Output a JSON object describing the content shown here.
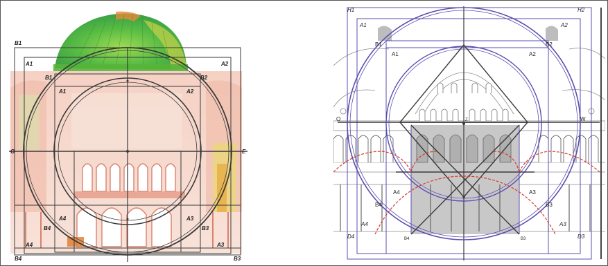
{
  "left_panel": {
    "labels": {
      "b1_top": "B1",
      "a1": "A1",
      "a2": "A2",
      "b1_inner": "B1",
      "b2_inner": "B2",
      "a1_inner": "A1",
      "a2_inner": "A2",
      "o": "O",
      "e": "E",
      "a4": "A4",
      "a3": "A3",
      "b4": "B4",
      "b3": "B3",
      "a4_bottom": "A4",
      "a3_bottom": "A3",
      "b4_bottom": "B4",
      "b3_bottom": "B3"
    }
  },
  "right_panel": {
    "labels": {
      "h1": "H1",
      "h2": "H2",
      "a1": "A1",
      "a2": "A2",
      "b1": "B1",
      "b2": "B2",
      "a1_inner": "A1",
      "a2_inner": "A2",
      "o": "O",
      "w": "W",
      "center": "Z",
      "a4": "A4",
      "a3": "A3",
      "b4": "B4",
      "b3": "B3",
      "a4_bottom": "A4",
      "a3_bottom": "A3",
      "d4": "D4",
      "d3": "D3",
      "b4_bottom": "B4",
      "b3_bottom": "B3"
    }
  },
  "colors": {
    "dome_green": "#5fbf3a",
    "dome_yellow": "#c9d24a",
    "brick_red": "#e08a7a",
    "construction_dark": "#3a3a3a",
    "construction_purple": "#5a4fb0",
    "arc_red": "#d83a2a",
    "gray_fill": "#c8c8c8"
  }
}
